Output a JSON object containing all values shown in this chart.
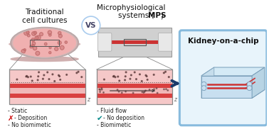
{
  "title_left": "Traditional\ncell cultures",
  "title_right_line1": "Microphysiological",
  "title_right_line2": "systems (",
  "title_right_mps": "MPS",
  "title_right_line2_end": ")",
  "vs_text": "VS",
  "kidney_title": "Kidney-on-a-chip",
  "arrow_color": "#1a3a6b",
  "left_bullet1": "- Static",
  "left_bullet2": "- Deposition",
  "left_bullet3": "- No biomimetic",
  "right_bullet1": "- Fluid flow",
  "right_bullet2": "- No deposition",
  "right_bullet3": "- Biomimetic",
  "cross_color": "#cc0000",
  "check_color": "#008888",
  "bg_color": "#ffffff",
  "petri_pink_light": "#f5c8c8",
  "petri_pink": "#f0b0b0",
  "petri_edge": "#d4aaaa",
  "petri_rim": "#ccaaaa",
  "chip_bg": "#c8c8c8",
  "chip_channel_red": "#cc3333",
  "layer_top_light": "#f5c8c8",
  "layer_mid_red": "#d94040",
  "layer_pink_lower": "#f0b0b0",
  "layer_dots_color": "#553333",
  "kidney_box_edge": "#88bbdd",
  "kidney_box_fill": "#e8f4fb",
  "kidney_chip_top": "#d4eaf6",
  "kidney_chip_side": "#b8d4e4",
  "kidney_chip_front": "#c8dff0",
  "kidney_chip_bottom_face": "#9ab8cc",
  "kidney_channel": "#cc3333",
  "font_size_title": 7.5,
  "font_size_label": 5.5,
  "font_size_vs": 7,
  "font_size_kidney": 7.5,
  "vs_circle_edge": "#aaccee"
}
